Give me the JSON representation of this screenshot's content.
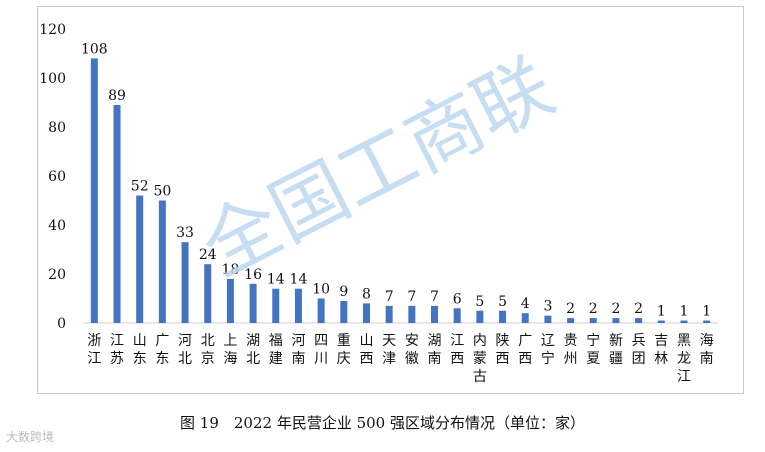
{
  "chart_data": {
    "type": "bar",
    "categories": [
      "浙江",
      "江苏",
      "山东",
      "广东",
      "河北",
      "北京",
      "上海",
      "湖北",
      "福建",
      "河南",
      "四川",
      "重庆",
      "山西",
      "天津",
      "安徽",
      "湖南",
      "江西",
      "内蒙古",
      "陕西",
      "广西",
      "辽宁",
      "贵州",
      "宁夏",
      "新疆",
      "兵团",
      "吉林",
      "黑龙江",
      "海南"
    ],
    "values": [
      108,
      89,
      52,
      50,
      33,
      24,
      18,
      16,
      14,
      14,
      10,
      9,
      8,
      7,
      7,
      7,
      6,
      5,
      5,
      4,
      3,
      2,
      2,
      2,
      2,
      1,
      1,
      1
    ],
    "ylim": [
      0,
      120
    ],
    "yticks": [
      0,
      20,
      40,
      60,
      80,
      100,
      120
    ],
    "bar_color": "#4472c4",
    "grid": false,
    "data_labels": true
  },
  "watermark": "全国工商联",
  "caption": "图 19　2022 年民营企业 500 强区域分布情况（单位：家）",
  "source_logo": "大数跨境"
}
